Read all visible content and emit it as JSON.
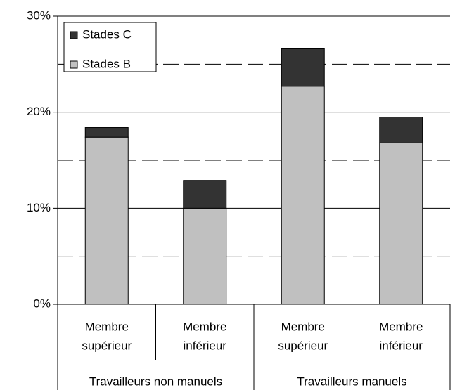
{
  "chart_data": {
    "type": "stacked_bar",
    "categories": [
      [
        "Membre",
        "supérieur"
      ],
      [
        "Membre",
        "inférieur"
      ],
      [
        "Membre",
        "supérieur"
      ],
      [
        "Membre",
        "inférieur"
      ]
    ],
    "groups": [
      "Travailleurs non manuels",
      "Travailleurs manuels"
    ],
    "series": [
      {
        "name": "Stades B",
        "color": "#c0c0c0",
        "values": [
          17.4,
          10.0,
          22.7,
          16.8
        ]
      },
      {
        "name": "Stades C",
        "color": "#333333",
        "values": [
          1.0,
          2.9,
          3.9,
          2.7
        ]
      }
    ],
    "ylim": [
      0,
      30
    ],
    "yticks": [
      {
        "value": 0,
        "label": "0%"
      },
      {
        "value": 10,
        "label": "10%"
      },
      {
        "value": 20,
        "label": "20%"
      },
      {
        "value": 30,
        "label": "30%"
      }
    ],
    "minor_gridlines": [
      5,
      15,
      25
    ],
    "grid": true,
    "legend": "top-left"
  }
}
